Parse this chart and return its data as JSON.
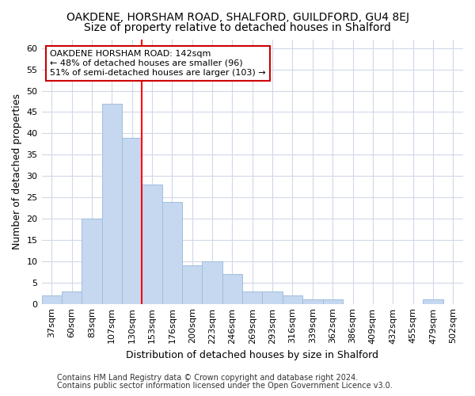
{
  "title": "OAKDENE, HORSHAM ROAD, SHALFORD, GUILDFORD, GU4 8EJ",
  "subtitle": "Size of property relative to detached houses in Shalford",
  "xlabel": "Distribution of detached houses by size in Shalford",
  "ylabel": "Number of detached properties",
  "categories": [
    "37sqm",
    "60sqm",
    "83sqm",
    "107sqm",
    "130sqm",
    "153sqm",
    "176sqm",
    "200sqm",
    "223sqm",
    "246sqm",
    "269sqm",
    "293sqm",
    "316sqm",
    "339sqm",
    "362sqm",
    "386sqm",
    "409sqm",
    "432sqm",
    "455sqm",
    "479sqm",
    "502sqm"
  ],
  "values": [
    2,
    3,
    20,
    47,
    39,
    28,
    24,
    9,
    10,
    7,
    3,
    3,
    2,
    1,
    1,
    0,
    0,
    0,
    0,
    1,
    0
  ],
  "bar_color": "#c5d8f0",
  "bar_edgecolor": "#a0bedd",
  "redline_x": 4.5,
  "ylim": [
    0,
    62
  ],
  "yticks": [
    0,
    5,
    10,
    15,
    20,
    25,
    30,
    35,
    40,
    45,
    50,
    55,
    60
  ],
  "annotation_text": "OAKDENE HORSHAM ROAD: 142sqm\n← 48% of detached houses are smaller (96)\n51% of semi-detached houses are larger (103) →",
  "annotation_box_facecolor": "#ffffff",
  "annotation_box_edgecolor": "#cc0000",
  "footer_line1": "Contains HM Land Registry data © Crown copyright and database right 2024.",
  "footer_line2": "Contains public sector information licensed under the Open Government Licence v3.0.",
  "background_color": "#ffffff",
  "plot_background": "#ffffff",
  "grid_color": "#d0d8e8",
  "title_fontsize": 10,
  "subtitle_fontsize": 10,
  "tick_fontsize": 8,
  "ylabel_fontsize": 9,
  "xlabel_fontsize": 9,
  "footer_fontsize": 7
}
